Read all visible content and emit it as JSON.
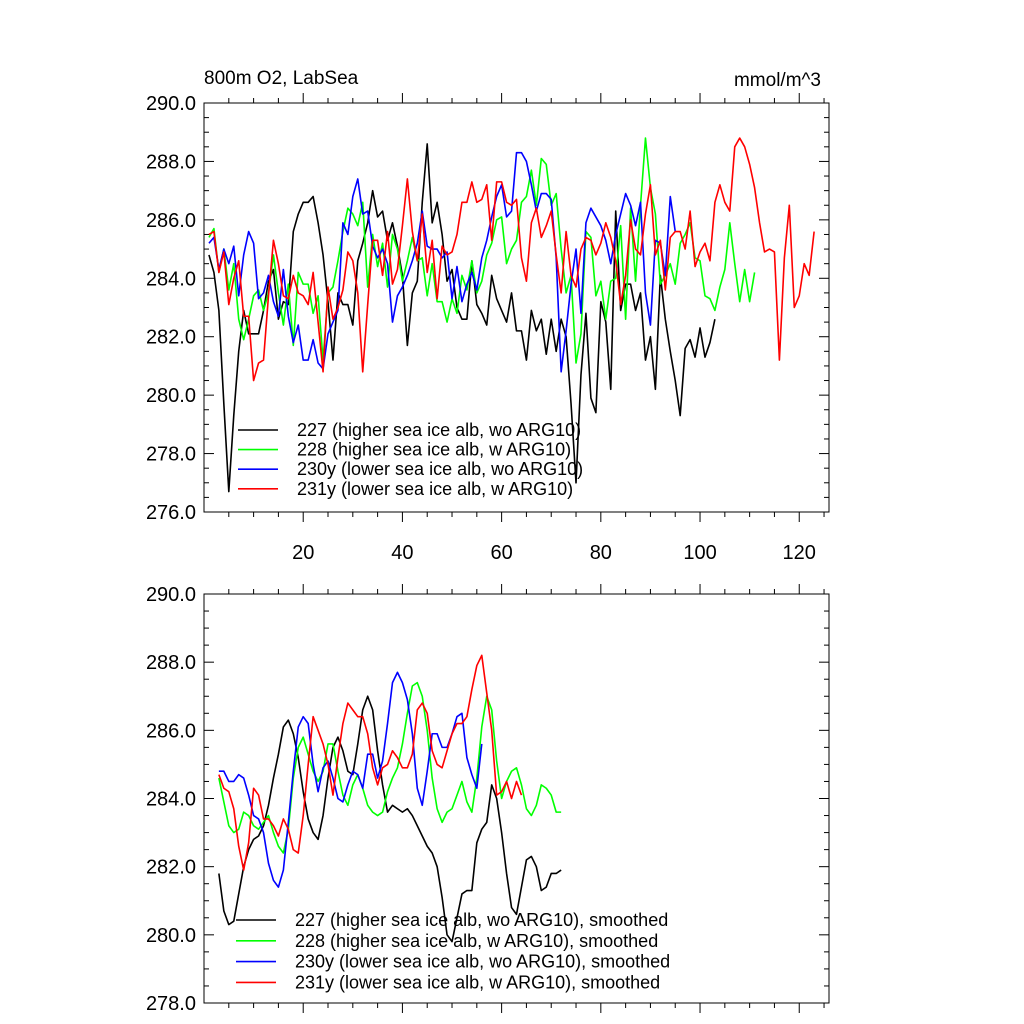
{
  "chart_data": [
    {
      "type": "line",
      "title": "800m O2, LabSea",
      "units": "mmol/m^3",
      "xlim": [
        0,
        126
      ],
      "ylim": [
        276,
        290
      ],
      "yticks": [
        "276.0",
        "278.0",
        "280.0",
        "282.0",
        "284.0",
        "286.0",
        "288.0",
        "290.0"
      ],
      "xticks": [
        "20",
        "40",
        "60",
        "80",
        "100",
        "120"
      ],
      "legend_position": "lower-left",
      "series": [
        {
          "name": "227 (higher sea ice alb, wo ARG10)",
          "color": "#000000",
          "values": [
            284.8,
            284.2,
            282.9,
            279.7,
            276.7,
            279.3,
            281.5,
            282.9,
            282.1,
            282.1,
            282.1,
            282.9,
            283.9,
            284.3,
            282.6,
            283.2,
            283.1,
            285.6,
            286.2,
            286.6,
            286.6,
            286.8,
            285.9,
            284.8,
            283.2,
            281.2,
            283.5,
            283.1,
            283.1,
            282.4,
            284.6,
            285.2,
            285.9,
            287.0,
            286.1,
            286.3,
            285.3,
            285.9,
            285.1,
            284.1,
            281.7,
            283.5,
            283.9,
            286.6,
            288.6,
            285.9,
            286.6,
            285.5,
            283.9,
            284.3,
            283.0,
            282.6,
            282.6,
            284.6,
            283.1,
            282.8,
            282.4,
            284.1,
            283.3,
            282.9,
            282.5,
            283.5,
            282.2,
            282.2,
            281.2,
            282.9,
            282.2,
            282.6,
            281.4,
            282.6,
            281.5,
            282.6,
            282.0,
            279.7,
            277.0,
            280.7,
            282.8,
            279.9,
            279.4,
            283.2,
            282.5,
            280.2,
            286.3,
            282.9,
            283.8,
            283.8,
            282.9,
            283.5,
            281.2,
            282.0,
            280.2,
            284.1,
            282.6,
            281.5,
            280.5,
            279.3,
            281.6,
            281.9,
            281.3,
            282.3,
            281.3,
            281.8,
            282.6
          ],
          "x_start": 1
        },
        {
          "name": "228 (higher sea ice alb, w ARG10)",
          "color": "#00ff00",
          "values": [
            285.4,
            285.7,
            284.2,
            285.0,
            283.6,
            284.5,
            282.6,
            281.9,
            282.6,
            283.4,
            283.6,
            282.9,
            283.5,
            284.8,
            283.5,
            282.4,
            283.8,
            281.7,
            284.2,
            283.8,
            283.8,
            282.8,
            283.4,
            281.2,
            283.5,
            283.7,
            284.6,
            285.6,
            286.4,
            286.2,
            285.8,
            286.6,
            283.7,
            285.5,
            284.4,
            285.2,
            283.7,
            285.5,
            285.0,
            283.9,
            284.6,
            285.4,
            284.6,
            284.7,
            283.4,
            284.5,
            283.2,
            283.2,
            282.5,
            283.3,
            282.8,
            284.1,
            283.6,
            284.6,
            283.5,
            283.9,
            284.8,
            285.2,
            286.0,
            286.1,
            284.5,
            285.0,
            285.3,
            286.6,
            286.8,
            287.7,
            286.5,
            288.1,
            287.9,
            286.5,
            286.9,
            285.0,
            283.5,
            284.1,
            281.1,
            282.1,
            285.6,
            285.4,
            283.4,
            283.9,
            282.6,
            283.9,
            284.0,
            285.8,
            282.6,
            286.4,
            283.9,
            286.5,
            288.8,
            287.1,
            286.2,
            283.8,
            284.1,
            284.5,
            283.8,
            285.2,
            285.5,
            285.9,
            284.7,
            284.6,
            283.4,
            283.3,
            282.9,
            283.7,
            284.3,
            285.9,
            284.5,
            283.2,
            284.3,
            283.2,
            284.2
          ],
          "x_start": 1
        },
        {
          "name": "230y (lower sea ice alb, wo ARG10)",
          "color": "#0000ff",
          "values": [
            285.2,
            285.4,
            284.3,
            285.0,
            284.5,
            285.1,
            283.4,
            284.8,
            285.6,
            285.2,
            283.3,
            283.5,
            284.1,
            283.2,
            282.7,
            284.3,
            282.7,
            281.8,
            282.4,
            281.2,
            281.2,
            281.9,
            281.1,
            280.9,
            282.1,
            282.5,
            282.9,
            285.9,
            285.5,
            286.8,
            287.4,
            286.2,
            286.3,
            285.1,
            284.7,
            285.0,
            284.5,
            282.5,
            283.4,
            283.7,
            284.1,
            284.6,
            285.2,
            286.3,
            285.1,
            285.0,
            285.0,
            284.7,
            284.9,
            283.3,
            284.4,
            283.2,
            283.8,
            284.2,
            283.6,
            284.7,
            285.3,
            286.1,
            286.8,
            287.2,
            286.1,
            286.3,
            288.3,
            288.3,
            288.0,
            287.2,
            286.3,
            286.9,
            286.9,
            286.7,
            284.7,
            280.8,
            282.2,
            283.8,
            285.0,
            282.8,
            285.9,
            286.4,
            286.1,
            285.8,
            285.3,
            284.5,
            285.5,
            286.2,
            286.9,
            286.5,
            285.8,
            286.6,
            283.5,
            282.4,
            285.3,
            285.2,
            284.1,
            286.8,
            285.6
          ],
          "x_start": 1
        },
        {
          "name": "231y (lower sea ice alb, w ARG10)",
          "color": "#ff0000",
          "values": [
            285.5,
            285.6,
            284.2,
            284.9,
            283.1,
            284.0,
            284.6,
            282.7,
            282.7,
            280.5,
            281.1,
            281.2,
            283.4,
            285.3,
            284.5,
            283.4,
            283.3,
            284.1,
            283.5,
            283.4,
            283.1,
            284.2,
            282.5,
            280.8,
            283.7,
            282.6,
            283.0,
            283.6,
            284.9,
            284.6,
            283.5,
            280.8,
            283.1,
            285.3,
            285.3,
            284.1,
            285.6,
            283.8,
            284.3,
            285.8,
            287.4,
            285.6,
            284.6,
            286.2,
            284.2,
            285.3,
            283.3,
            285.1,
            284.8,
            284.9,
            285.5,
            286.6,
            286.6,
            287.3,
            286.6,
            286.7,
            287.2,
            285.3,
            287.3,
            287.3,
            286.6,
            286.5,
            286.7,
            284.7,
            283.9,
            285.9,
            286.4,
            285.4,
            285.8,
            286.3,
            284.8,
            283.5,
            285.6,
            284.1,
            283.7,
            285.0,
            285.4,
            285.3,
            284.8,
            285.2,
            285.9,
            285.4,
            284.6,
            283.1,
            284.1,
            286.0,
            285.0,
            284.8,
            286.2,
            287.2,
            284.8,
            285.3,
            283.6,
            285.4,
            285.6,
            285.6,
            285.0,
            286.3,
            284.4,
            284.9,
            285.2,
            284.6,
            286.6,
            287.2,
            286.6,
            286.3,
            288.5,
            288.8,
            288.5,
            287.9,
            287.1,
            285.9,
            284.9,
            285.0,
            284.9,
            281.2,
            284.7,
            286.5,
            283.0,
            283.4,
            284.5,
            284.1,
            285.6
          ],
          "x_start": 1
        }
      ]
    },
    {
      "type": "line",
      "title": "",
      "xlim": [
        0,
        126
      ],
      "ylim": [
        278,
        290
      ],
      "yticks": [
        "278.0",
        "280.0",
        "282.0",
        "284.0",
        "286.0",
        "288.0",
        "290.0"
      ],
      "xticks": [],
      "legend_position": "lower-left",
      "series": [
        {
          "name": "227 (higher sea ice alb, wo ARG10), smoothed",
          "color": "#000000",
          "values": [
            281.8,
            280.7,
            280.3,
            280.4,
            281.2,
            282.0,
            282.5,
            282.8,
            282.9,
            283.2,
            283.8,
            284.6,
            285.3,
            286.1,
            286.3,
            285.9,
            285.2,
            284.2,
            283.4,
            283.0,
            282.8,
            283.5,
            284.6,
            285.5,
            285.8,
            285.4,
            284.8,
            284.7,
            285.6,
            286.6,
            287.0,
            286.6,
            285.4,
            284.4,
            283.6,
            283.8,
            283.7,
            283.6,
            283.7,
            283.5,
            283.2,
            282.9,
            282.6,
            282.4,
            282.0,
            281.1,
            280.0,
            279.8,
            280.5,
            281.2,
            281.3,
            281.3,
            282.7,
            283.1,
            283.3,
            284.4,
            284.0,
            283.0,
            281.8,
            280.8,
            280.6,
            281.4,
            282.2,
            282.3,
            282.0,
            281.3,
            281.4,
            281.8,
            281.8,
            281.9
          ],
          "x_start": 3
        },
        {
          "name": "228 (higher sea ice alb, w ARG10), smoothed",
          "color": "#00ff00",
          "values": [
            284.6,
            283.9,
            283.2,
            283.0,
            283.1,
            283.6,
            283.5,
            283.2,
            283.1,
            283.3,
            283.5,
            283.0,
            282.6,
            282.4,
            283.1,
            284.6,
            285.5,
            285.8,
            285.3,
            284.8,
            284.5,
            284.8,
            285.6,
            285.6,
            284.8,
            284.1,
            283.8,
            284.4,
            284.7,
            284.3,
            283.8,
            283.6,
            283.5,
            283.6,
            284.2,
            284.6,
            284.9,
            285.6,
            286.5,
            287.3,
            287.4,
            287.0,
            286.0,
            284.6,
            283.7,
            283.3,
            283.6,
            283.7,
            284.1,
            284.5,
            283.9,
            283.6,
            284.6,
            286.1,
            287.0,
            286.6,
            285.1,
            284.0,
            284.5,
            284.8,
            284.9,
            284.4,
            283.7,
            283.5,
            283.8,
            284.4,
            284.3,
            284.1,
            283.6,
            283.6
          ],
          "x_start": 3
        },
        {
          "name": "230y (lower sea ice alb, wo ARG10), smoothed",
          "color": "#0000ff",
          "values": [
            284.8,
            284.8,
            284.5,
            284.5,
            284.7,
            284.6,
            284.1,
            283.5,
            283.4,
            283.0,
            282.1,
            281.6,
            281.4,
            281.9,
            283.3,
            284.8,
            286.1,
            286.4,
            286.2,
            285.0,
            284.2,
            284.9,
            285.1,
            284.6,
            284.0,
            283.9,
            284.4,
            284.8,
            284.7,
            284.3,
            285.3,
            285.3,
            284.6,
            285.1,
            286.2,
            287.4,
            287.7,
            287.4,
            286.9,
            285.9,
            284.3,
            283.8,
            284.8,
            285.9,
            285.9,
            285.5,
            285.5,
            285.9,
            286.4,
            286.5,
            285.2,
            284.7,
            284.3,
            285.6
          ],
          "x_start": 3
        },
        {
          "name": "231y (lower sea ice alb, w ARG10), smoothed",
          "color": "#ff0000",
          "values": [
            284.7,
            284.3,
            284.2,
            283.7,
            282.6,
            281.9,
            282.7,
            284.3,
            284.1,
            283.4,
            283.4,
            283.2,
            282.9,
            283.4,
            283.1,
            282.5,
            282.4,
            283.5,
            285.0,
            286.4,
            286.0,
            285.6,
            285.0,
            284.1,
            285.2,
            286.2,
            286.8,
            286.6,
            286.4,
            286.4,
            285.9,
            284.9,
            284.4,
            284.9,
            285.0,
            285.4,
            285.2,
            284.9,
            284.9,
            285.3,
            286.6,
            286.8,
            286.5,
            285.4,
            285.0,
            284.9,
            285.4,
            285.9,
            286.2,
            286.2,
            286.4,
            287.2,
            287.9,
            288.2,
            287.1,
            286.0,
            284.1,
            284.2,
            284.5,
            284.0,
            284.5,
            284.1
          ],
          "x_start": 3
        }
      ]
    }
  ]
}
